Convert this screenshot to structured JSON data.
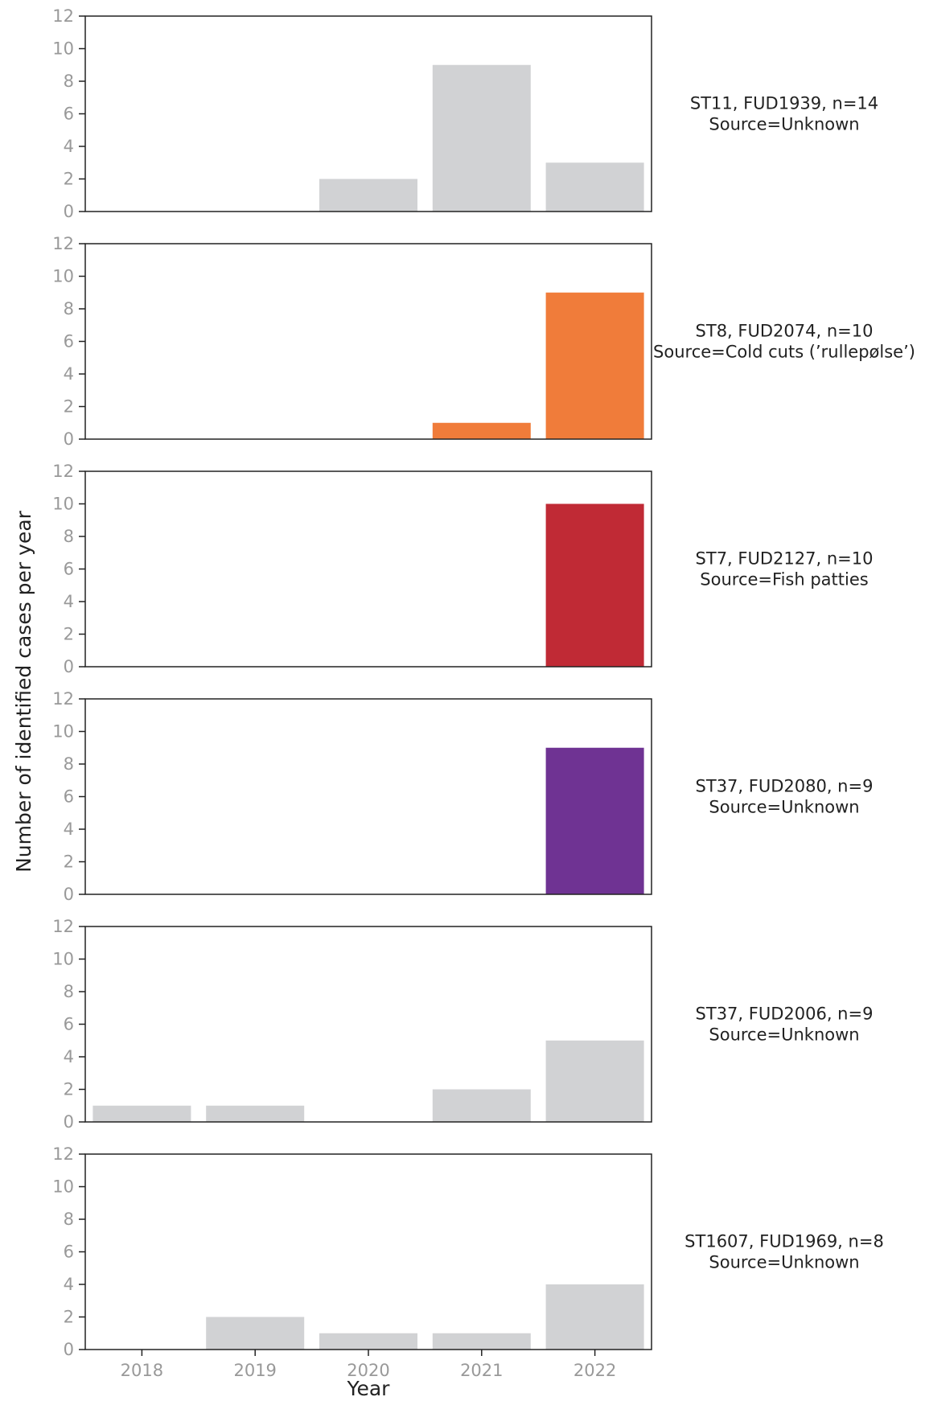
{
  "chart_data": {
    "type": "bar",
    "xlabel": "Year",
    "ylabel": "Number of identified cases per year",
    "categories": [
      "2018",
      "2019",
      "2020",
      "2021",
      "2022"
    ],
    "ylim": [
      0,
      12
    ],
    "yticks": [
      0,
      2,
      4,
      6,
      8,
      10,
      12
    ],
    "grid": false,
    "legend": "none",
    "panels": [
      {
        "label_line1": "ST11, FUD1939, n=14",
        "label_line2": "Source=Unknown",
        "color": "#d1d2d4",
        "values": [
          0,
          0,
          2,
          9,
          3
        ]
      },
      {
        "label_line1": "ST8, FUD2074, n=10",
        "label_line2": "Source=Cold cuts (’rullepølse’)",
        "color": "#f07c3a",
        "values": [
          0,
          0,
          0,
          1,
          9
        ]
      },
      {
        "label_line1": "ST7, FUD2127, n=10",
        "label_line2": "Source=Fish patties",
        "color": "#c02a35",
        "values": [
          0,
          0,
          0,
          0,
          10
        ]
      },
      {
        "label_line1": "ST37, FUD2080, n=9",
        "label_line2": "Source=Unknown",
        "color": "#6f3393",
        "values": [
          0,
          0,
          0,
          0,
          9
        ]
      },
      {
        "label_line1": "ST37, FUD2006, n=9",
        "label_line2": "Source=Unknown",
        "color": "#d1d2d4",
        "values": [
          1,
          1,
          0,
          2,
          5
        ]
      },
      {
        "label_line1": "ST1607, FUD1969, n=8",
        "label_line2": "Source=Unknown",
        "color": "#d1d2d4",
        "values": [
          0,
          2,
          1,
          1,
          4
        ]
      }
    ]
  }
}
